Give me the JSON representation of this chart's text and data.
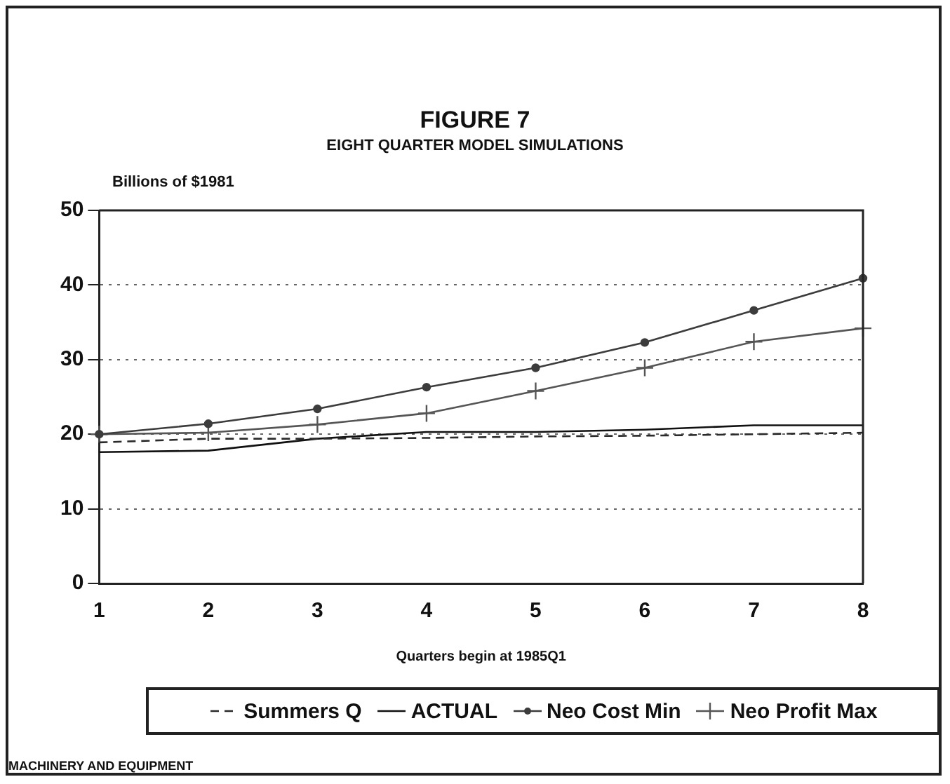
{
  "chart_data": {
    "type": "line",
    "title": "FIGURE 7",
    "subtitle": "EIGHT QUARTER MODEL SIMULATIONS",
    "ylabel": "Billions of $1981",
    "xlabel": "Quarters begin at 1985Q1",
    "x": [
      1,
      2,
      3,
      4,
      5,
      6,
      7,
      8
    ],
    "xlim": [
      1,
      8
    ],
    "xticks": [
      1,
      2,
      3,
      4,
      5,
      6,
      7,
      8
    ],
    "ylim": [
      0,
      50
    ],
    "yticks": [
      0,
      10,
      20,
      30,
      40,
      50
    ],
    "grid": "y",
    "legend": "bottom",
    "series": [
      {
        "name": "Summers Q",
        "color": "#2a2a2a",
        "line_style": "dashed",
        "marker": "none",
        "values": [
          18.9,
          19.4,
          19.4,
          19.5,
          19.7,
          19.8,
          20.0,
          20.2
        ]
      },
      {
        "name": "ACTUAL",
        "color": "#111111",
        "line_style": "solid",
        "marker": "none",
        "values": [
          17.6,
          17.8,
          19.4,
          20.3,
          20.3,
          20.6,
          21.2,
          21.2
        ]
      },
      {
        "name": "Neo Cost Min",
        "color": "#3c3c3c",
        "line_style": "solid",
        "marker": "circle",
        "values": [
          20.0,
          21.4,
          23.4,
          26.3,
          28.9,
          32.3,
          36.6,
          40.9
        ]
      },
      {
        "name": "Neo Profit Max",
        "color": "#555555",
        "line_style": "solid",
        "marker": "cross",
        "values": [
          20.0,
          20.2,
          21.3,
          22.8,
          25.8,
          28.9,
          32.4,
          34.2
        ]
      }
    ],
    "annotations": [
      "MACHINERY AND EQUIPMENT"
    ]
  }
}
